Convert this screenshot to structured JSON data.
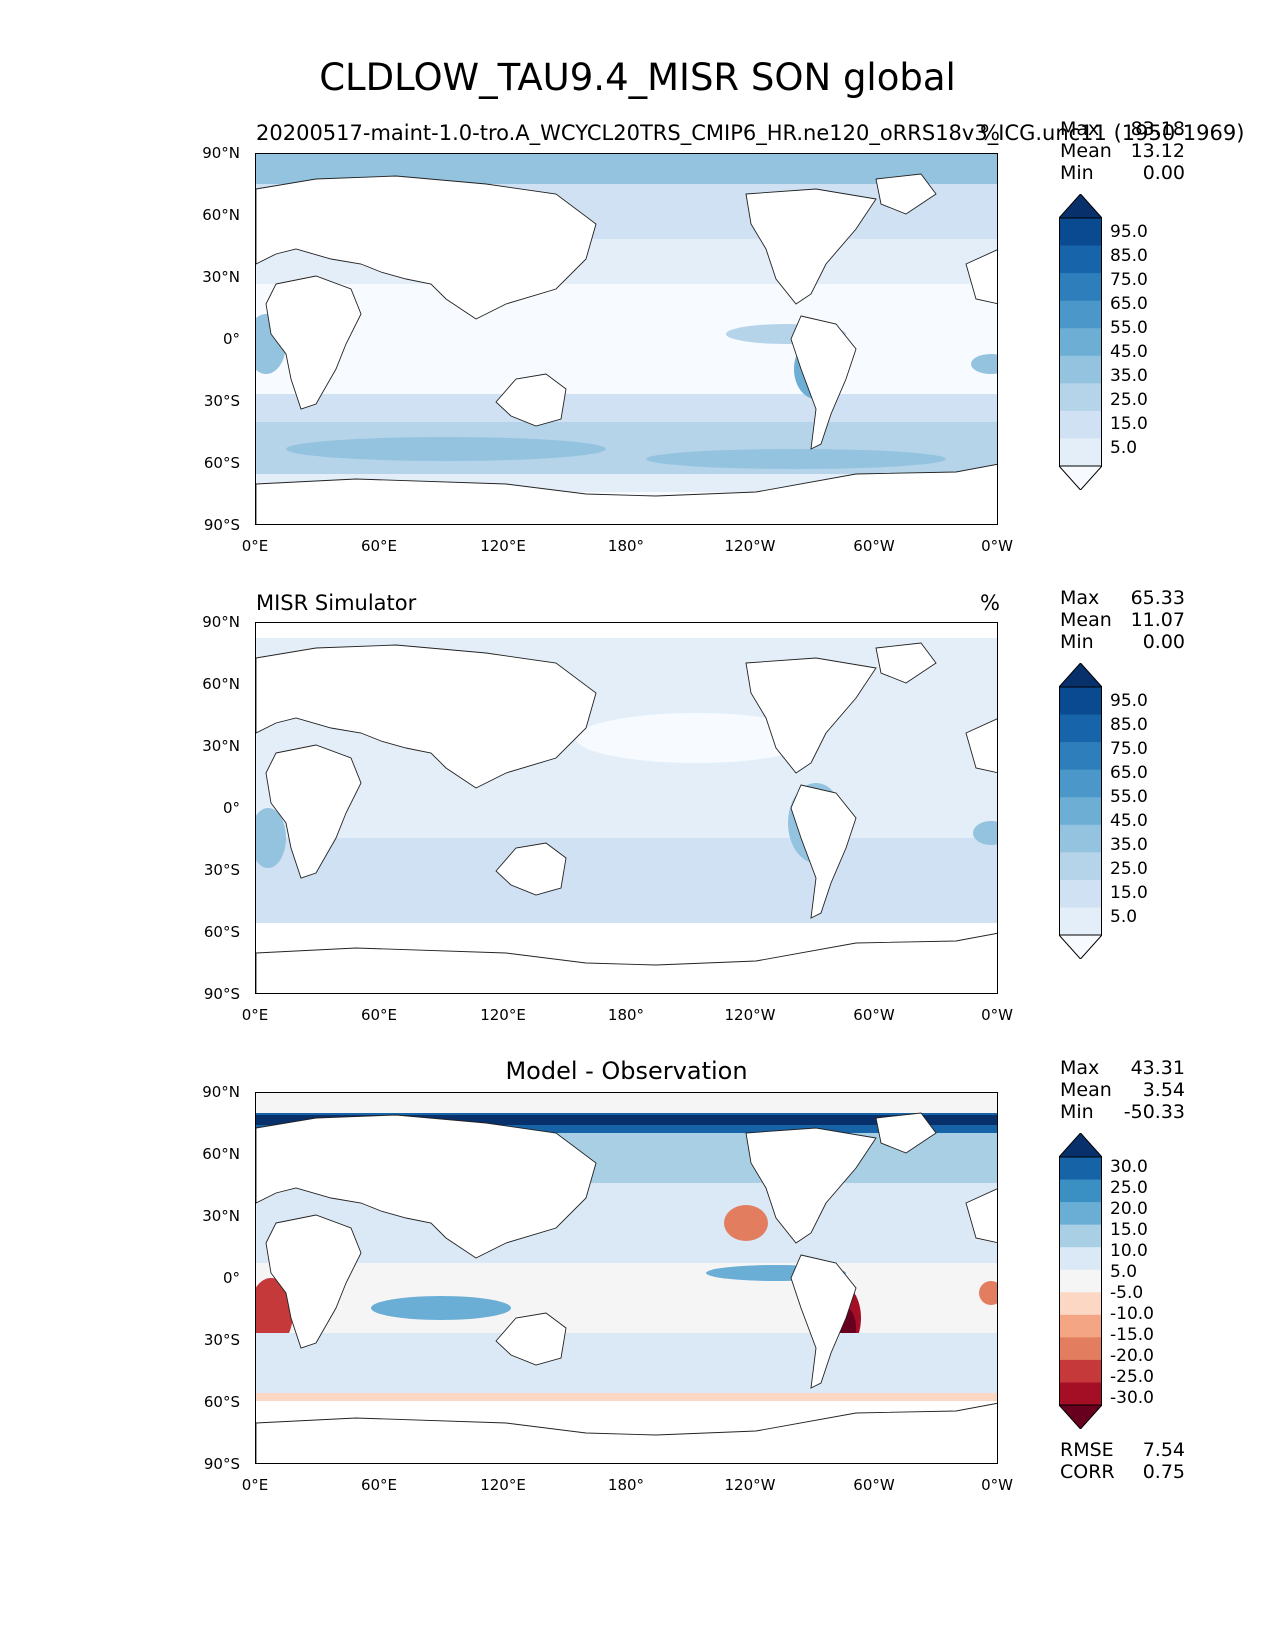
{
  "title": "CLDLOW_TAU9.4_MISR SON global",
  "colors": {
    "blues": [
      "#f7fbff",
      "#e3eef9",
      "#cfe1f2",
      "#b5d4e9",
      "#93c3df",
      "#6daed5",
      "#4b97c9",
      "#2f7ebc",
      "#1864aa",
      "#0a4a90",
      "#08306b"
    ],
    "diff": [
      "#67001f",
      "#a50f26",
      "#c6393b",
      "#e27d5f",
      "#f4a584",
      "#fbd7c4",
      "#f5f5f5",
      "#dbe9f6",
      "#a9cfe5",
      "#6aaed6",
      "#3a8fc3",
      "#1763a7",
      "#08306b"
    ]
  },
  "axes": {
    "lat_ticks": [
      "90°N",
      "60°N",
      "30°N",
      "0°",
      "30°S",
      "60°S",
      "90°S"
    ],
    "lon_ticks": [
      "0°E",
      "60°E",
      "120°E",
      "180°",
      "120°W",
      "60°W",
      "0°W"
    ]
  },
  "panels": [
    {
      "id": "test",
      "left_title": "20200517-maint-1.0-tro.A_WCYCL20TRS_CMIP6_HR.ne120_oRRS18v3_ICG.unc11 (1950-1969)",
      "center_title": "",
      "units": "%",
      "stats": [
        {
          "name": "Max",
          "value": "83.18"
        },
        {
          "name": "Mean",
          "value": "13.12"
        },
        {
          "name": "Min",
          "value": "0.00"
        }
      ],
      "colorbar_labels": [
        "95.0",
        "85.0",
        "75.0",
        "65.0",
        "55.0",
        "45.0",
        "35.0",
        "25.0",
        "15.0",
        "5.0"
      ],
      "metrics": []
    },
    {
      "id": "reference",
      "left_title": "MISR Simulator",
      "center_title": "",
      "units": "%",
      "stats": [
        {
          "name": "Max",
          "value": "65.33"
        },
        {
          "name": "Mean",
          "value": "11.07"
        },
        {
          "name": "Min",
          "value": "0.00"
        }
      ],
      "colorbar_labels": [
        "95.0",
        "85.0",
        "75.0",
        "65.0",
        "55.0",
        "45.0",
        "35.0",
        "25.0",
        "15.0",
        "5.0"
      ],
      "metrics": []
    },
    {
      "id": "difference",
      "left_title": "",
      "center_title": "Model - Observation",
      "units": "",
      "stats": [
        {
          "name": "Max",
          "value": "43.31"
        },
        {
          "name": "Mean",
          "value": "3.54"
        },
        {
          "name": "Min",
          "value": "-50.33"
        }
      ],
      "colorbar_labels": [
        "30.0",
        "25.0",
        "20.0",
        "15.0",
        "10.0",
        "5.0",
        "-5.0",
        "-10.0",
        "-15.0",
        "-20.0",
        "-25.0",
        "-30.0"
      ],
      "metrics": [
        {
          "name": "RMSE",
          "value": "7.54"
        },
        {
          "name": "CORR",
          "value": "0.75"
        }
      ]
    }
  ]
}
